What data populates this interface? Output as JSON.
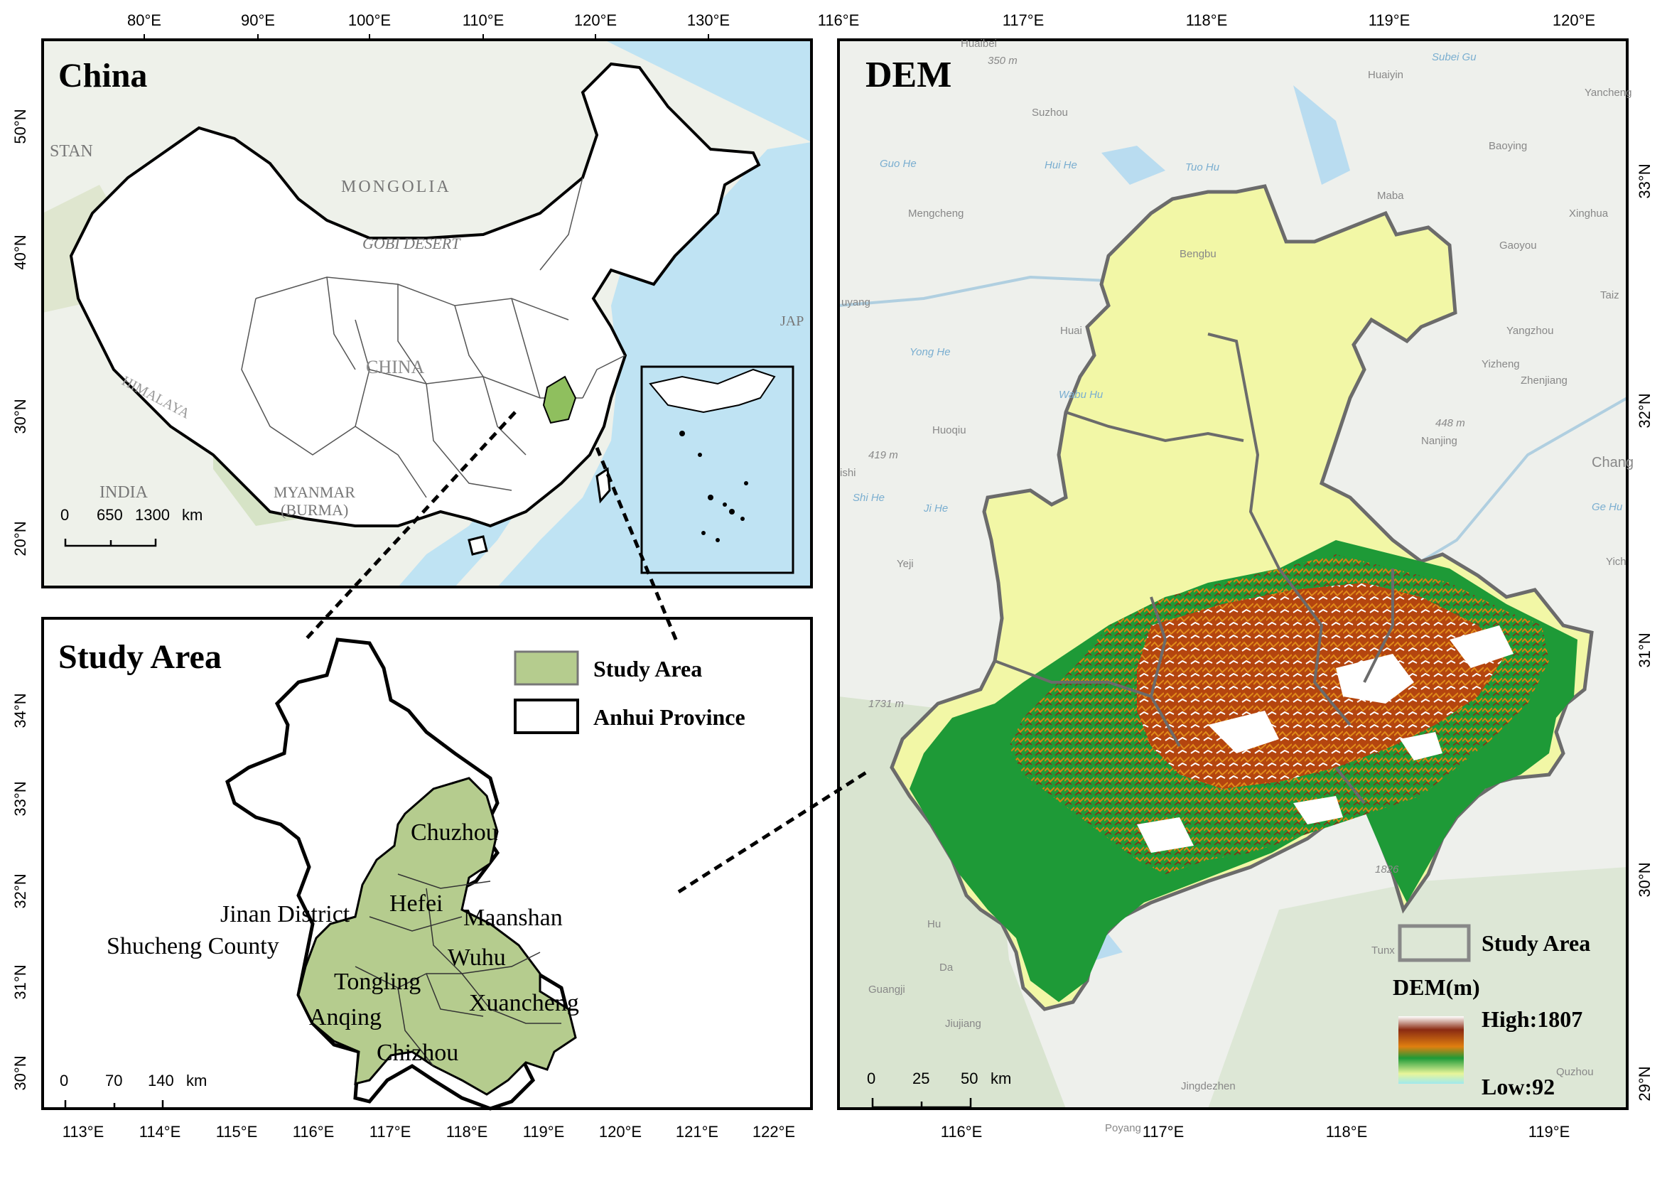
{
  "panels": {
    "china": {
      "title": "China",
      "top_ticks": [
        "80°E",
        "90°E",
        "100°E",
        "110°E",
        "120°E",
        "130°E"
      ],
      "left_ticks": [
        "50°N",
        "40°N",
        "30°N",
        "20°N"
      ],
      "place_labels": [
        "STAN",
        "MONGOLIA",
        "GOBI DESERT",
        "CHINA",
        "INDIA",
        "MYANMAR",
        "(BURMA)",
        "HIMALAYA",
        "JAP"
      ],
      "scale": {
        "values": [
          "0",
          "650",
          "1300"
        ],
        "unit": "km"
      }
    },
    "study_area": {
      "title": "Study Area",
      "left_ticks": [
        "34°N",
        "33°N",
        "32°N",
        "31°N",
        "30°N"
      ],
      "bottom_ticks": [
        "113°E",
        "114°E",
        "115°E",
        "116°E",
        "117°E",
        "118°E",
        "119°E",
        "120°E",
        "121°E",
        "122°E"
      ],
      "legend": [
        "Study Area",
        "Anhui Province"
      ],
      "city_labels": [
        "Chuzhou",
        "Jinan District",
        "Hefei",
        "Maanshan",
        "Shucheng County",
        "Wuhu",
        "Tongling",
        "Anqing",
        "Xuancheng",
        "Chizhou"
      ],
      "scale": {
        "values": [
          "0",
          "70",
          "140"
        ],
        "unit": "km"
      }
    },
    "dem": {
      "title": "DEM",
      "top_ticks": [
        "116°E",
        "117°E",
        "118°E",
        "119°E",
        "120°E"
      ],
      "bottom_ticks": [
        "116°E",
        "117°E",
        "118°E",
        "119°E"
      ],
      "right_ticks": [
        "33°N",
        "32°N",
        "31°N",
        "30°N",
        "29°N"
      ],
      "basemap_labels": [
        "Huaibei",
        "350 m",
        "Suzhou",
        "Huaiyin",
        "Subei Gu",
        "Yancheng",
        "Baoying",
        "Guo He",
        "Hui He",
        "Tuo Hu",
        "Mengcheng",
        "Maba",
        "Xinghua",
        "Gaoyou",
        "Bengbu",
        "Taiz",
        "uyang",
        "Yangzhou",
        "Yong He",
        "Huai",
        "Yizheng",
        "Zhenjiang",
        "Wabu Hu",
        "Huoqiu",
        "448 m",
        "Nanjing",
        "419 m",
        "ishi",
        "Chang",
        "Shi He",
        "Ji He",
        "Ge Hu",
        "Yeji",
        "Yich",
        "1731 m",
        "1826",
        "Hu",
        "Da",
        "Tunx",
        "Guangji",
        "Jiujiang",
        "Jingdezhen",
        "Poyang",
        "Quzhou"
      ],
      "legend": {
        "study_area": "Study Area",
        "title": "DEM(m)",
        "high": "High:1807",
        "low": "Low:92"
      },
      "scale": {
        "values": [
          "0",
          "25",
          "50"
        ],
        "unit": "km"
      }
    }
  },
  "colors": {
    "study_area_fill": "#b5cc8e",
    "dem_low": "#f2f7a6",
    "dem_green": "#1e9a37",
    "dem_orange": "#e07f10",
    "dem_brown": "#8a2a12",
    "dem_high": "#ffffff",
    "sea": "#bfe3f3"
  }
}
